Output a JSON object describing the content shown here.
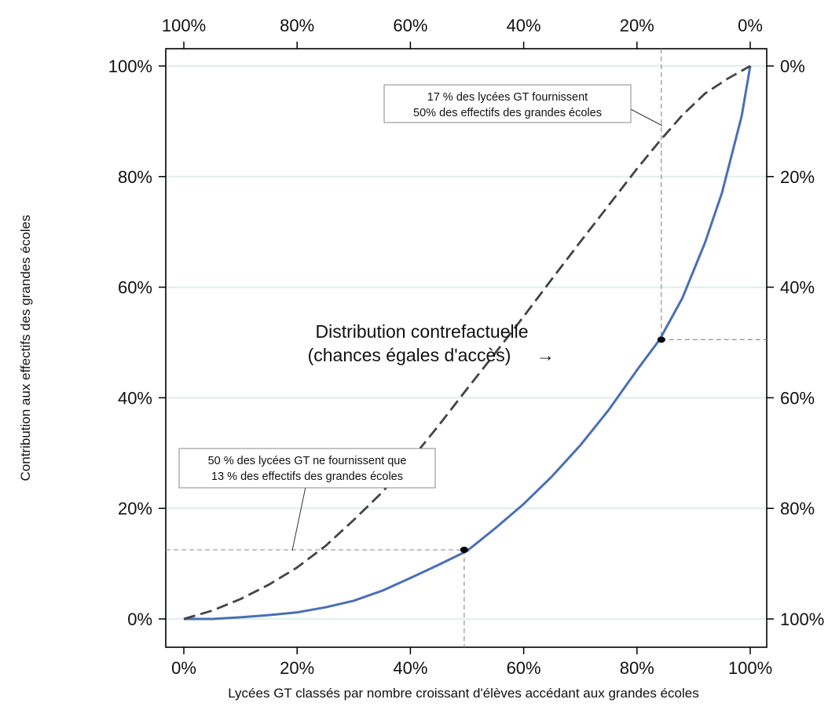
{
  "chart_data": {
    "type": "line",
    "xlabel": "Lycées GT classés par nombre croissant d'élèves accédant aux grandes écoles",
    "ylabel": "Contribution aux effectifs des grandes écoles",
    "xlim": [
      0,
      100
    ],
    "ylim": [
      0,
      100
    ],
    "x_ticks": [
      "0%",
      "20%",
      "40%",
      "60%",
      "80%",
      "100%"
    ],
    "y_ticks": [
      "0%",
      "20%",
      "40%",
      "60%",
      "80%",
      "100%"
    ],
    "top_ticks": [
      "100%",
      "80%",
      "60%",
      "40%",
      "20%",
      "0%"
    ],
    "right_ticks": [
      "100%",
      "80%",
      "60%",
      "40%",
      "20%",
      "0%"
    ],
    "grid": "horizontal",
    "series": [
      {
        "style": "solid",
        "color": "#4a6fb5",
        "x": [
          0,
          5,
          10,
          15,
          20,
          25,
          30,
          35,
          40,
          45,
          50,
          55,
          60,
          65,
          70,
          75,
          80,
          84,
          88,
          92,
          95,
          97,
          98.5,
          100
        ],
        "y": [
          0,
          0,
          0.3,
          0.7,
          1.2,
          2.1,
          3.3,
          5.1,
          7.4,
          9.8,
          12.3,
          16.4,
          20.8,
          25.8,
          31.4,
          37.8,
          45.0,
          50.5,
          58,
          68,
          77,
          85,
          91,
          100
        ]
      },
      {
        "style": "dashed",
        "color": "#444444",
        "x": [
          0,
          5,
          10,
          15,
          20,
          25,
          30,
          35,
          40,
          45,
          50,
          55,
          60,
          65,
          70,
          75,
          80,
          84,
          88,
          92,
          96,
          100
        ],
        "y": [
          0,
          1.5,
          3.6,
          6.2,
          9.3,
          13.2,
          17.9,
          22.9,
          28.7,
          35.0,
          41.6,
          48.1,
          54.7,
          61.5,
          68.2,
          74.8,
          81.4,
          86.4,
          91.1,
          95.0,
          97.7,
          100
        ]
      }
    ],
    "points": [
      {
        "x": 49.5,
        "y": 12.5
      },
      {
        "x": 84.3,
        "y": 50.5
      }
    ],
    "annotations": [
      {
        "line1": "17 % des lycées GT fournissent",
        "line2": "50% des effectifs des grandes écoles"
      },
      {
        "line1": "50 % des lycées GT ne fournissent que",
        "line2": "13 % des effectifs des grandes écoles"
      }
    ],
    "series_label": {
      "line1": "Distribution contrefactuelle",
      "line2": "(chances égales d'accès)",
      "arrow": "→"
    }
  }
}
